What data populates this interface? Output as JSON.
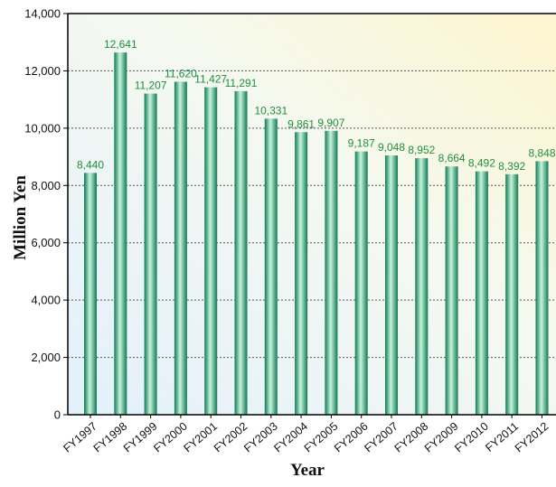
{
  "chart_data": {
    "type": "bar",
    "title": "",
    "xlabel": "Year",
    "ylabel": "Million Yen",
    "ylim": [
      0,
      14000
    ],
    "yticks": [
      0,
      2000,
      4000,
      6000,
      8000,
      10000,
      12000,
      14000
    ],
    "ytick_labels": [
      "0",
      "2,000",
      "4,000",
      "6,000",
      "8,000",
      "10,000",
      "12,000",
      "14,000"
    ],
    "grid": true,
    "legend": "none",
    "categories": [
      "FY1997",
      "FY1998",
      "FY1999",
      "FY2000",
      "FY2001",
      "FY2002",
      "FY2003",
      "FY2004",
      "FY2005",
      "FY2006",
      "FY2007",
      "FY2008",
      "FY2009",
      "FY2010",
      "FY2011",
      "FY2012"
    ],
    "values": [
      8440,
      12641,
      11207,
      11620,
      11427,
      11291,
      10331,
      9861,
      9907,
      9187,
      9048,
      8952,
      8664,
      8492,
      8392,
      8848
    ],
    "value_labels": [
      "8,440",
      "12,641",
      "11,207",
      "11,620",
      "11,427",
      "11,291",
      "10,331",
      "9,861",
      "9,907",
      "9,187",
      "9,048",
      "8,952",
      "8,664",
      "8,492",
      "8,392",
      "8,848"
    ],
    "colors": {
      "bar_dark": "#0f7a55",
      "bar_light": "#c8f5dc",
      "label": "#1f8f3f",
      "grid": "#555555",
      "background_top_right": "#fdf6cf",
      "background_bottom_left": "#e3f0fb"
    }
  }
}
